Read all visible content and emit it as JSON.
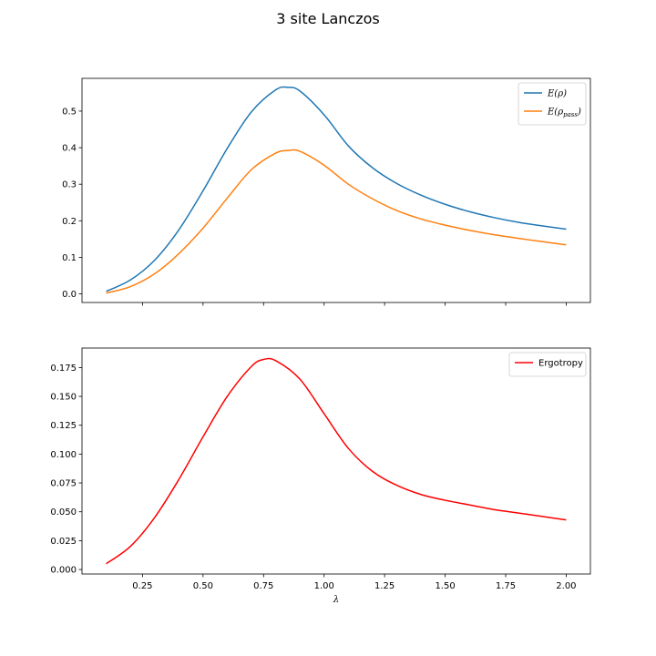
{
  "figure": {
    "title": "3 site Lanczos"
  },
  "chart_data": [
    {
      "type": "line",
      "title": "",
      "xlabel": "",
      "ylabel": "",
      "xlim": [
        -0.0,
        2.1
      ],
      "ylim": [
        -0.0236,
        0.5896
      ],
      "x_ticks": [
        0.25,
        0.5,
        0.75,
        1.0,
        1.25,
        1.5,
        1.75,
        2.0
      ],
      "x_tick_labels_visible": false,
      "y_ticks": [
        0.0,
        0.1,
        0.2,
        0.3,
        0.4,
        0.5
      ],
      "y_tick_labels": [
        "0.0",
        "0.1",
        "0.2",
        "0.3",
        "0.4",
        "0.5"
      ],
      "grid": false,
      "legend_position": "top-right",
      "legend_entries": [
        {
          "label_base": "E(ρ)",
          "label_sub": "",
          "label_tail": "",
          "color": "#1f77b4"
        },
        {
          "label_base": "E(ρ",
          "label_sub": "pass",
          "label_tail": ")",
          "color": "#ff7f0e"
        }
      ],
      "series": [
        {
          "name": "E(ρ)",
          "color": "#1f77b4",
          "x": [
            0.1,
            0.2,
            0.3,
            0.4,
            0.5,
            0.6,
            0.7,
            0.8,
            0.85,
            0.9,
            1.0,
            1.1,
            1.2,
            1.3,
            1.4,
            1.5,
            1.6,
            1.7,
            1.8,
            1.9,
            2.0
          ],
          "values": [
            0.007,
            0.038,
            0.092,
            0.175,
            0.282,
            0.398,
            0.498,
            0.558,
            0.565,
            0.555,
            0.49,
            0.405,
            0.345,
            0.302,
            0.27,
            0.245,
            0.225,
            0.209,
            0.196,
            0.186,
            0.177
          ]
        },
        {
          "name": "E(ρ_pass)",
          "color": "#ff7f0e",
          "x": [
            0.1,
            0.2,
            0.3,
            0.4,
            0.5,
            0.6,
            0.7,
            0.8,
            0.85,
            0.9,
            1.0,
            1.1,
            1.2,
            1.3,
            1.4,
            1.5,
            1.6,
            1.7,
            1.8,
            1.9,
            2.0
          ],
          "values": [
            0.002,
            0.02,
            0.055,
            0.11,
            0.18,
            0.262,
            0.34,
            0.385,
            0.392,
            0.39,
            0.352,
            0.3,
            0.26,
            0.228,
            0.205,
            0.188,
            0.174,
            0.162,
            0.152,
            0.143,
            0.134
          ]
        }
      ]
    },
    {
      "type": "line",
      "title": "",
      "xlabel": "λ",
      "ylabel": "",
      "xlim": [
        -0.0,
        2.1
      ],
      "ylim": [
        -0.0039,
        0.1919
      ],
      "x_ticks": [
        0.25,
        0.5,
        0.75,
        1.0,
        1.25,
        1.5,
        1.75,
        2.0
      ],
      "x_tick_labels": [
        "0.25",
        "0.50",
        "0.75",
        "1.00",
        "1.25",
        "1.50",
        "1.75",
        "2.00"
      ],
      "y_ticks": [
        0.0,
        0.025,
        0.05,
        0.075,
        0.1,
        0.125,
        0.15,
        0.175
      ],
      "y_tick_labels": [
        "0.000",
        "0.025",
        "0.050",
        "0.075",
        "0.100",
        "0.125",
        "0.150",
        "0.175"
      ],
      "grid": false,
      "legend_position": "top-right",
      "legend_entries": [
        {
          "label_base": "Ergotropy",
          "label_sub": "",
          "label_tail": "",
          "color": "#ff0000"
        }
      ],
      "series": [
        {
          "name": "Ergotropy",
          "color": "#ff0000",
          "x": [
            0.1,
            0.2,
            0.3,
            0.4,
            0.5,
            0.6,
            0.7,
            0.75,
            0.8,
            0.9,
            1.0,
            1.1,
            1.2,
            1.3,
            1.4,
            1.5,
            1.6,
            1.7,
            1.8,
            1.9,
            2.0
          ],
          "values": [
            0.005,
            0.02,
            0.045,
            0.078,
            0.115,
            0.15,
            0.176,
            0.182,
            0.181,
            0.165,
            0.135,
            0.105,
            0.085,
            0.073,
            0.065,
            0.06,
            0.056,
            0.052,
            0.049,
            0.046,
            0.043
          ]
        }
      ]
    }
  ]
}
